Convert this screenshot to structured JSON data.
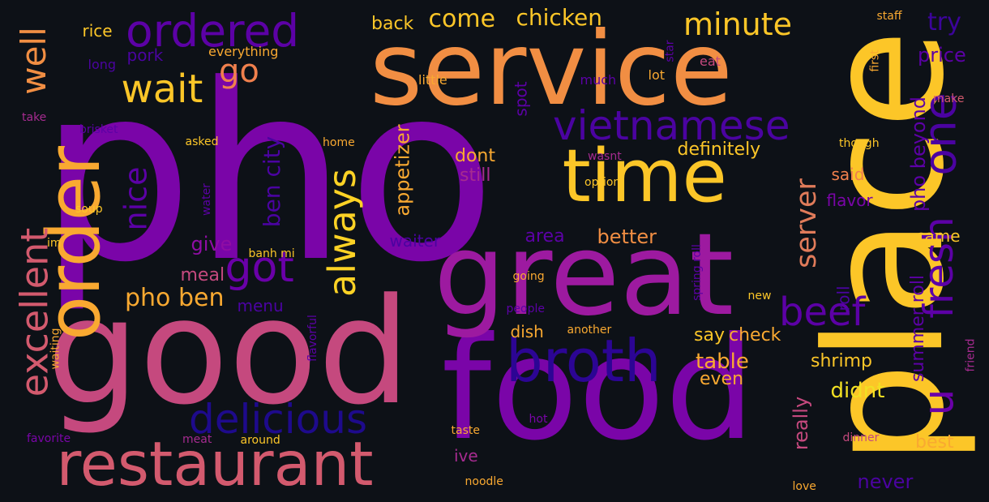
{
  "background": "#0d1117",
  "palette": {
    "deep_indigo": "#1e0a8c",
    "indigo": "#2c0594",
    "violet": "#7a05a8",
    "purple": "#8f0da4",
    "magenta": "#b02e91",
    "rose": "#c5497e",
    "pink_rose": "#d35a6e",
    "coral": "#e07b5a",
    "orange": "#f18e43",
    "amber": "#f9a931",
    "yellow": "#fcc628",
    "bright_yellow": "#f2e023"
  },
  "words": [
    {
      "text": "pho",
      "color": "#7a05a8"
    },
    {
      "text": "service",
      "color": "#f18e43"
    },
    {
      "text": "place",
      "color": "#fcc628"
    },
    {
      "text": "good",
      "color": "#c5497e"
    },
    {
      "text": "food",
      "color": "#7a05a8"
    },
    {
      "text": "great",
      "color": "#9d1aa0"
    },
    {
      "text": "order",
      "color": "#f9a931"
    },
    {
      "text": "time",
      "color": "#fcc628"
    },
    {
      "text": "restaurant",
      "color": "#d35a6e"
    },
    {
      "text": "broth",
      "color": "#2c0594"
    },
    {
      "text": "vietnamese",
      "color": "#4b03a1"
    },
    {
      "text": "ordered",
      "color": "#5c01a6"
    },
    {
      "text": "one",
      "color": "#4b03a1"
    },
    {
      "text": "delicious",
      "color": "#1e0a8c"
    },
    {
      "text": "excellent",
      "color": "#d35a6e"
    },
    {
      "text": "fresh",
      "color": "#5c01a6"
    },
    {
      "text": "u",
      "color": "#6a00a8"
    },
    {
      "text": "wait",
      "color": "#fcc628"
    },
    {
      "text": "got",
      "color": "#6a00a8"
    },
    {
      "text": "always",
      "color": "#fcd225"
    },
    {
      "text": "beef",
      "color": "#5c01a6"
    },
    {
      "text": "minute",
      "color": "#fcc628"
    },
    {
      "text": "go",
      "color": "#f0804d"
    },
    {
      "text": "nice",
      "color": "#5c01a6"
    },
    {
      "text": "well",
      "color": "#f18e43"
    },
    {
      "text": "pho ben",
      "color": "#f9a931"
    },
    {
      "text": "come",
      "color": "#fcc628"
    },
    {
      "text": "chicken",
      "color": "#fcc628"
    },
    {
      "text": "try",
      "color": "#3c049b"
    },
    {
      "text": "ben city",
      "color": "#4b03a1"
    },
    {
      "text": "server",
      "color": "#e07b5a"
    },
    {
      "text": "price",
      "color": "#5c01a6"
    },
    {
      "text": "definitely",
      "color": "#fcc628"
    },
    {
      "text": "dont",
      "color": "#f9a931"
    },
    {
      "text": "still",
      "color": "#a62b90"
    },
    {
      "text": "better",
      "color": "#f18e43"
    },
    {
      "text": "give",
      "color": "#8f0da4"
    },
    {
      "text": "waiter",
      "color": "#4b03a1"
    },
    {
      "text": "area",
      "color": "#5c01a6"
    },
    {
      "text": "meal",
      "color": "#c5497e"
    },
    {
      "text": "menu",
      "color": "#4b03a1"
    },
    {
      "text": "pho beyond",
      "color": "#5c01a6"
    },
    {
      "text": "summer roll",
      "color": "#5c01a6"
    },
    {
      "text": "appetizer",
      "color": "#f9a931"
    },
    {
      "text": "table",
      "color": "#f9a931"
    },
    {
      "text": "check",
      "color": "#f9a931"
    },
    {
      "text": "say",
      "color": "#fcc628"
    },
    {
      "text": "even",
      "color": "#f9a931"
    },
    {
      "text": "shrimp",
      "color": "#fcc628"
    },
    {
      "text": "didnt",
      "color": "#f2e023"
    },
    {
      "text": "really",
      "color": "#c5497e"
    },
    {
      "text": "best",
      "color": "#f9a931"
    },
    {
      "text": "never",
      "color": "#4b03a1"
    },
    {
      "text": "came",
      "color": "#fcc628"
    },
    {
      "text": "roll",
      "color": "#4b03a1"
    },
    {
      "text": "flavor",
      "color": "#7a05a8"
    },
    {
      "text": "said",
      "color": "#f0804d"
    },
    {
      "text": "dish",
      "color": "#f9a931"
    },
    {
      "text": "ive",
      "color": "#a62b90"
    },
    {
      "text": "back",
      "color": "#fcc628"
    },
    {
      "text": "pork",
      "color": "#4b03a1"
    },
    {
      "text": "rice",
      "color": "#fcc628"
    },
    {
      "text": "spot",
      "color": "#5c01a6"
    },
    {
      "text": "everything",
      "color": "#f9a931"
    },
    {
      "text": "long",
      "color": "#4b03a1"
    },
    {
      "text": "little",
      "color": "#f9a931"
    },
    {
      "text": "much",
      "color": "#5c01a6"
    },
    {
      "text": "lot",
      "color": "#f9a931"
    },
    {
      "text": "eat",
      "color": "#c5497e"
    },
    {
      "text": "star",
      "color": "#5c01a6"
    },
    {
      "text": "first",
      "color": "#f9a931"
    },
    {
      "text": "staff",
      "color": "#f9a931"
    },
    {
      "text": "make",
      "color": "#d35a6e"
    },
    {
      "text": "though",
      "color": "#fcc628"
    },
    {
      "text": "take",
      "color": "#a62b90"
    },
    {
      "text": "brisket",
      "color": "#5c01a6"
    },
    {
      "text": "asked",
      "color": "#fcc628"
    },
    {
      "text": "home",
      "color": "#f9a931"
    },
    {
      "text": "wasnt",
      "color": "#a62b90"
    },
    {
      "text": "option",
      "color": "#fcc628"
    },
    {
      "text": "water",
      "color": "#5c01a6"
    },
    {
      "text": "soup",
      "color": "#fcc628"
    },
    {
      "text": "im",
      "color": "#fcc628"
    },
    {
      "text": "banh mi",
      "color": "#fcc628"
    },
    {
      "text": "going",
      "color": "#f9a931"
    },
    {
      "text": "people",
      "color": "#5c01a6"
    },
    {
      "text": "spring roll",
      "color": "#5c01a6"
    },
    {
      "text": "flavorful",
      "color": "#5c01a6"
    },
    {
      "text": "another",
      "color": "#f9a931"
    },
    {
      "text": "new",
      "color": "#fcc628"
    },
    {
      "text": "friend",
      "color": "#a62b90"
    },
    {
      "text": "waiting",
      "color": "#f9a931"
    },
    {
      "text": "hot",
      "color": "#7a05a8"
    },
    {
      "text": "dinner",
      "color": "#c5497e"
    },
    {
      "text": "taste",
      "color": "#f9a931"
    },
    {
      "text": "favorite",
      "color": "#7a05a8"
    },
    {
      "text": "meat",
      "color": "#a62b90"
    },
    {
      "text": "around",
      "color": "#fcc628"
    },
    {
      "text": "noodle",
      "color": "#f9a931"
    },
    {
      "text": "love",
      "color": "#f9a931"
    }
  ]
}
